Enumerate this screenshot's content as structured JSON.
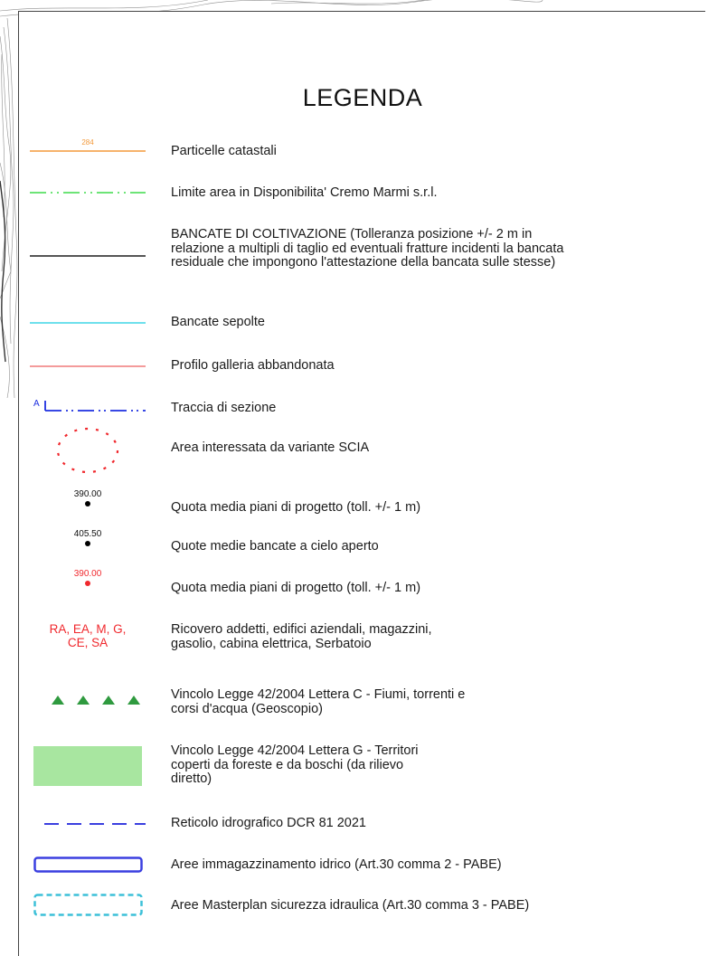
{
  "legend": {
    "title": "LEGENDA",
    "items": [
      {
        "symbol_label": "284",
        "text": "Particelle catastali"
      },
      {
        "text": "Limite area in Disponibilita' Cremo Marmi s.r.l."
      },
      {
        "text": "BANCATE DI COLTIVAZIONE (Tolleranza posizione +/- 2 m in relazione a multipli di taglio ed eventuali fratture incidenti la bancata residuale che impongono l'attestazione della bancata sulle stesse)"
      },
      {
        "text": "Bancate sepolte"
      },
      {
        "text": "Profilo galleria abbandonata"
      },
      {
        "symbol_label": "A",
        "text": "Traccia di sezione"
      },
      {
        "text": "Area interessata da variante SCIA"
      },
      {
        "symbol_label": "390.00",
        "text": "Quota media piani di progetto (toll. +/- 1 m)"
      },
      {
        "symbol_label": "405.50",
        "text": "Quote medie bancate a cielo aperto"
      },
      {
        "symbol_label": "390.00",
        "text": "Quota media piani di progetto (toll. +/- 1 m)"
      },
      {
        "symbol_label": "RA, EA, M, G, CE, SA",
        "text": "Ricovero addetti, edifici aziendali, magazzini, gasolio, cabina elettrica, Serbatoio"
      },
      {
        "text": "Vincolo Legge 42/2004 Lettera C - Fiumi, torrenti e corsi d'acqua (Geoscopio)"
      },
      {
        "text": "Vincolo Legge 42/2004 Lettera G - Territori coperti da foreste e da boschi (da rilievo diretto)"
      },
      {
        "text": "Reticolo idrografico DCR 81 2021"
      },
      {
        "text": "Aree immagazzinamento idrico (Art.30 comma 2 - PABE)"
      },
      {
        "text": "Aree Masterplan sicurezza idraulica (Art.30 comma 3 - PABE)"
      }
    ]
  },
  "colors": {
    "parcel": "#f39a3c",
    "limit": "#3ddc4a",
    "bench": "#555555",
    "buried": "#3fd6e6",
    "tunnel": "#f07a7a",
    "section": "#1d2fe0",
    "scia": "#f0282d",
    "forest": "#a8e6a0",
    "triangle": "#2f9a3f",
    "storage": "#3a3fe0",
    "masterplan": "#3cc0d8"
  }
}
